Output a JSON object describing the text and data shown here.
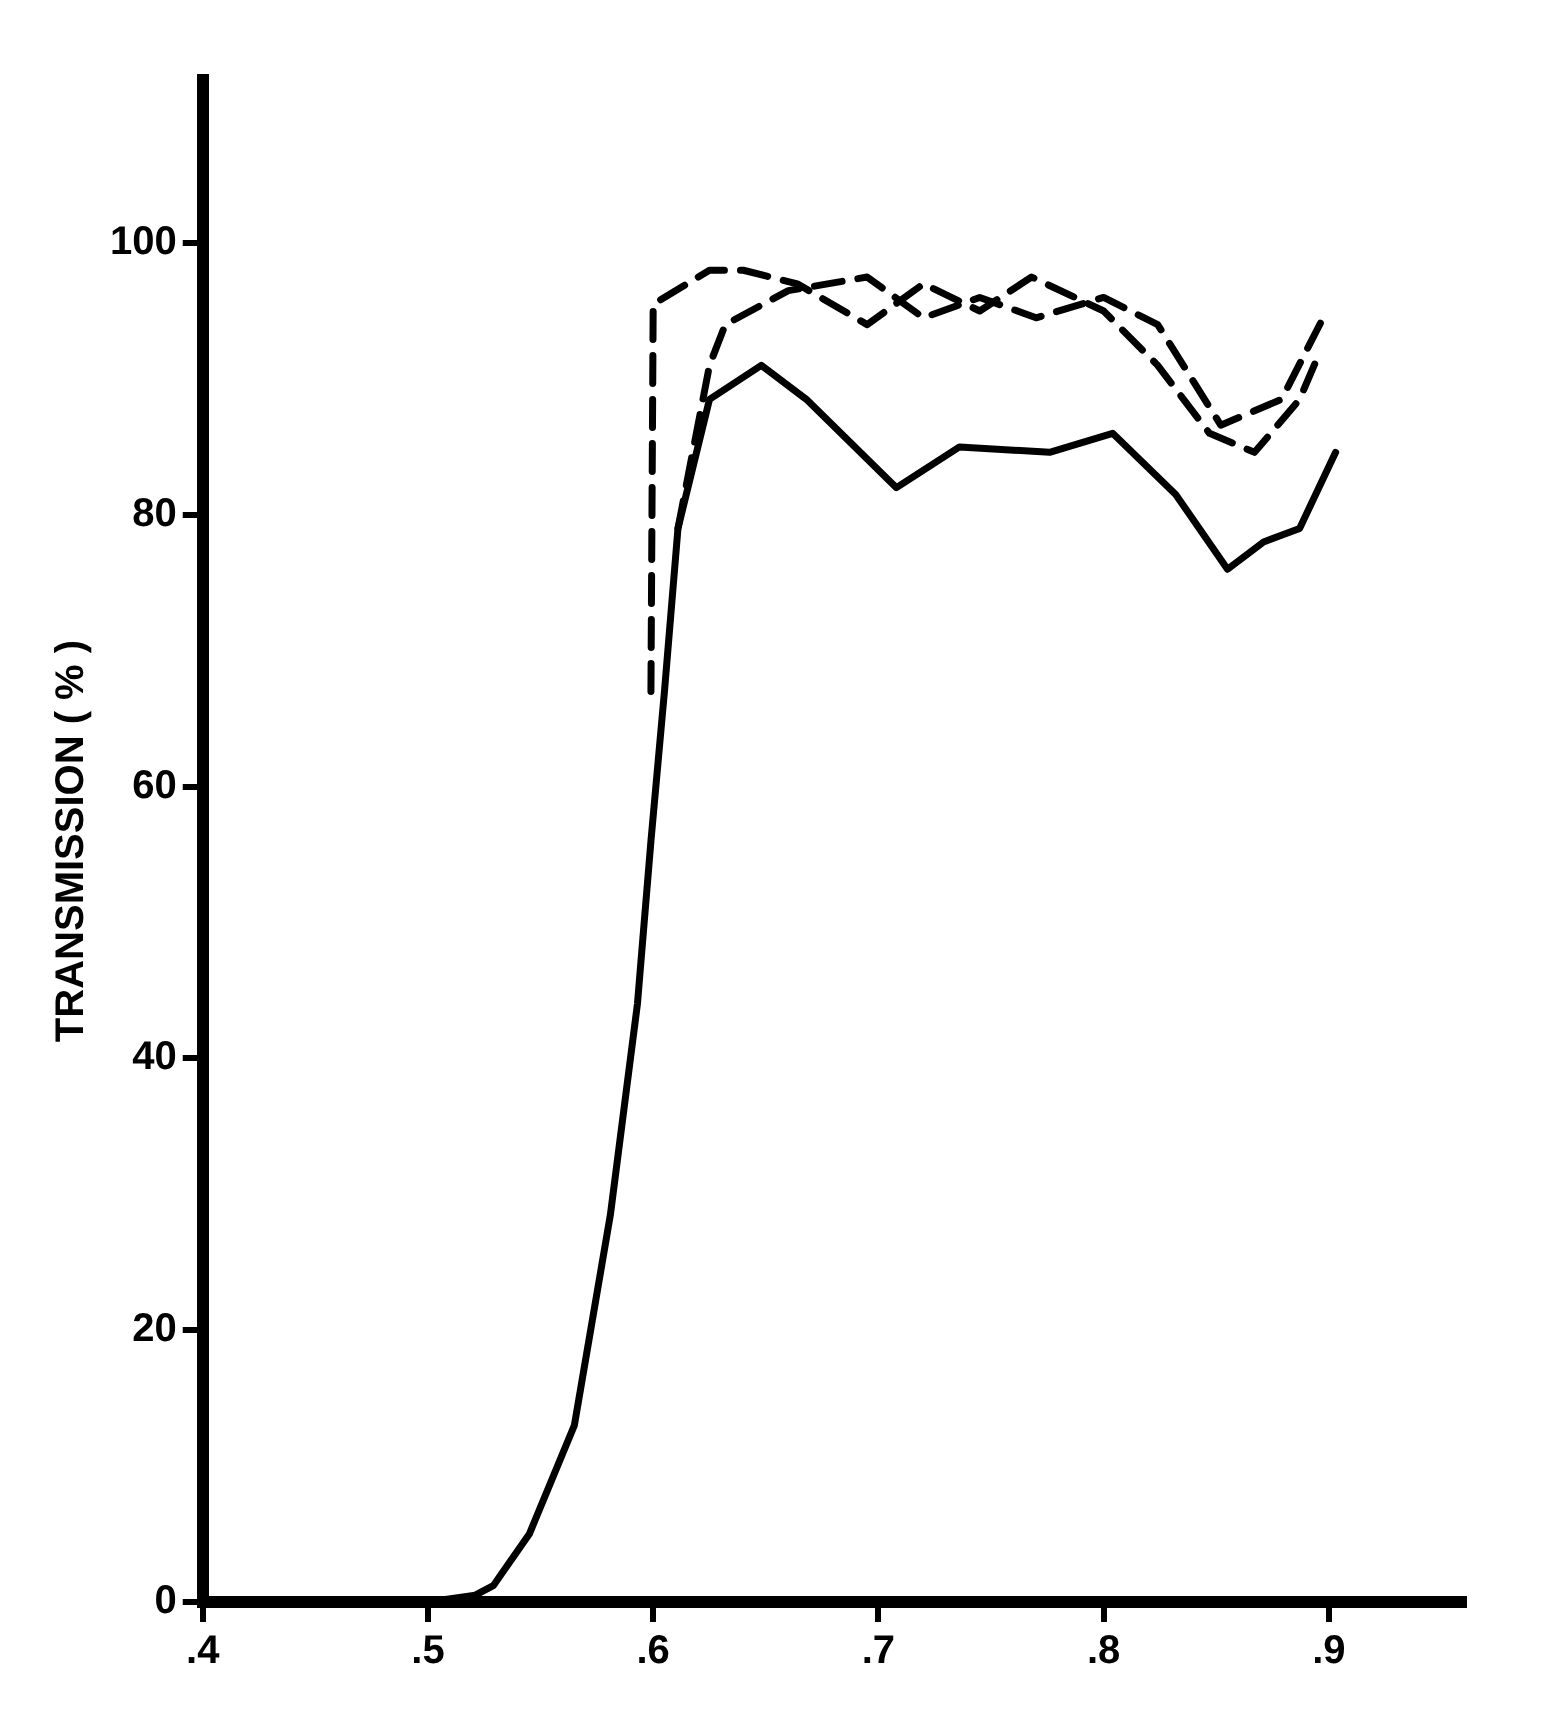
{
  "chart_data": {
    "type": "line",
    "ylabel": "TRANSMISSION ( % )",
    "xlim": [
      0.4,
      0.96
    ],
    "ylim": [
      0,
      112
    ],
    "xticks": [
      {
        "value": 0.4,
        "label": ".4"
      },
      {
        "value": 0.5,
        "label": ".5"
      },
      {
        "value": 0.6,
        "label": ".6"
      },
      {
        "value": 0.7,
        "label": ".7"
      },
      {
        "value": 0.8,
        "label": ".8"
      },
      {
        "value": 0.9,
        "label": ".9"
      }
    ],
    "yticks": [
      0,
      20,
      40,
      60,
      80,
      100
    ],
    "grid": false,
    "legend": false,
    "marker": "none",
    "series": [
      {
        "color": "#000000",
        "line_style": "solid",
        "x": [
          0.4,
          0.45,
          0.5,
          0.521,
          0.529,
          0.545,
          0.565,
          0.581,
          0.593,
          0.599,
          0.605,
          0.611,
          0.625,
          0.648,
          0.668,
          0.708,
          0.736,
          0.776,
          0.804,
          0.832,
          0.855,
          0.871,
          0.887,
          0.903
        ],
        "values": [
          0,
          0,
          0,
          0.5,
          1.2,
          5,
          13,
          28.5,
          44,
          56,
          67,
          79,
          88.5,
          91,
          88.5,
          82,
          85,
          84.6,
          86,
          81.5,
          76,
          78,
          79,
          84.6
        ]
      },
      {
        "color": "#000000",
        "line_style": "dashed",
        "x": [
          0.599,
          0.6,
          0.625,
          0.64,
          0.664,
          0.695,
          0.72,
          0.745,
          0.768,
          0.8,
          0.824,
          0.847,
          0.867,
          0.887,
          0.895
        ],
        "values": [
          67,
          95.5,
          98,
          98,
          97,
          94,
          97,
          95,
          97.5,
          95,
          91,
          86,
          84.6,
          88.5,
          91.6
        ]
      },
      {
        "color": "#000000",
        "line_style": "dashed",
        "x": [
          0.611,
          0.625,
          0.632,
          0.66,
          0.695,
          0.72,
          0.745,
          0.77,
          0.8,
          0.824,
          0.852,
          0.879,
          0.899
        ],
        "values": [
          79,
          91,
          94,
          96.5,
          97.5,
          94.5,
          96,
          94.5,
          96,
          94,
          86.6,
          88.5,
          95
        ]
      }
    ]
  }
}
